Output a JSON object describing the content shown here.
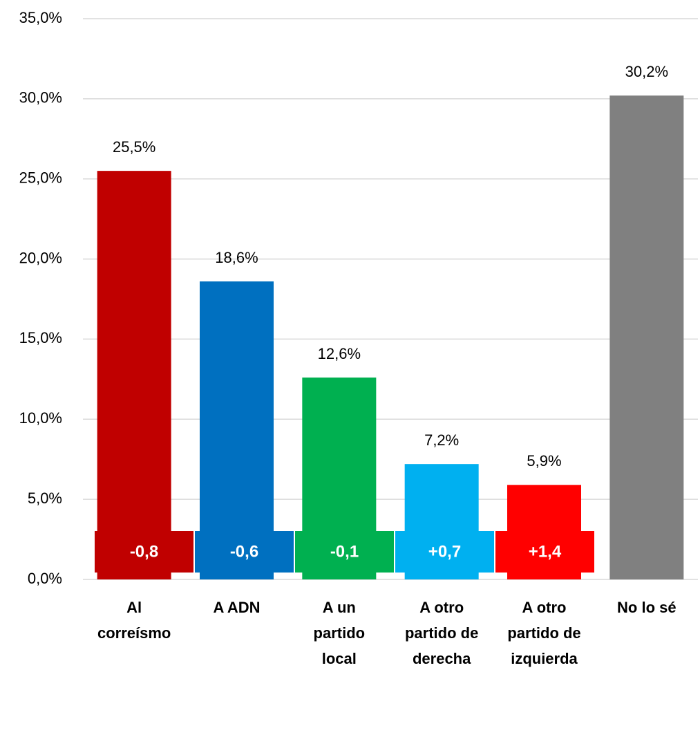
{
  "chart_data": {
    "type": "bar",
    "categories": [
      [
        "Al",
        "correísmo"
      ],
      [
        "A ADN"
      ],
      [
        "A un",
        "partido",
        "local"
      ],
      [
        "A otro",
        "partido de",
        "derecha"
      ],
      [
        "A otro",
        "partido de",
        "izquierda"
      ],
      [
        "No lo sé"
      ]
    ],
    "values": [
      25.5,
      18.6,
      12.6,
      7.2,
      5.9,
      30.2
    ],
    "value_labels": [
      "25,5%",
      "18,6%",
      "12,6%",
      "7,2%",
      "5,9%",
      "30,2%"
    ],
    "colors": [
      "#c00000",
      "#0070c0",
      "#00b050",
      "#00b0f0",
      "#ff0000",
      "#808080"
    ],
    "ylim": [
      0,
      35
    ],
    "yticks": [
      {
        "value": 0,
        "label": "0,0%"
      },
      {
        "value": 5,
        "label": "5,0%"
      },
      {
        "value": 10,
        "label": "10,0%"
      },
      {
        "value": 15,
        "label": "15,0%"
      },
      {
        "value": 20,
        "label": "20,0%"
      },
      {
        "value": 25,
        "label": "25,0%"
      },
      {
        "value": 30,
        "label": "30,0%"
      },
      {
        "value": 35,
        "label": "35,0%"
      }
    ],
    "grid": true,
    "changes": {
      "values": [
        -0.8,
        -0.6,
        -0.1,
        0.7,
        1.4
      ],
      "value_labels": [
        "-0,8",
        "-0,6",
        "-0,1",
        "+0,7",
        "+1,4"
      ]
    }
  }
}
